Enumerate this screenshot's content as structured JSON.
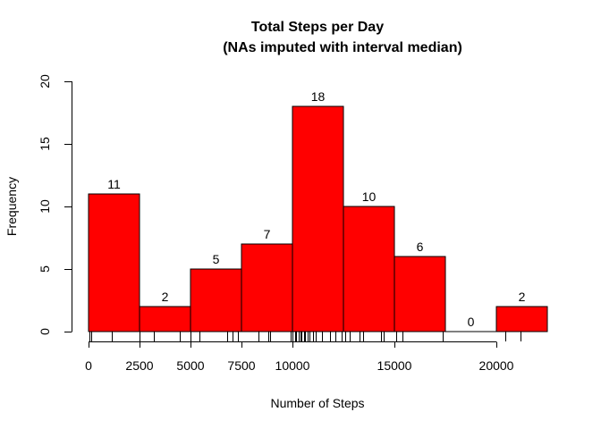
{
  "chart_data": {
    "type": "bar",
    "title": "Total Steps per Day",
    "subtitle": "(NAs imputed with interval median)",
    "xlabel": "Number of Steps",
    "ylabel": "Frequency",
    "bin_edges": [
      0,
      2500,
      5000,
      7500,
      10000,
      12500,
      15000,
      17500,
      20000,
      22500
    ],
    "values": [
      11,
      2,
      5,
      7,
      18,
      10,
      6,
      0,
      2
    ],
    "xlim": [
      0,
      22500
    ],
    "ylim": [
      0,
      20
    ],
    "x_ticks": [
      0,
      2500,
      5000,
      7500,
      10000,
      15000,
      20000
    ],
    "y_ticks": [
      0,
      5,
      10,
      15,
      20
    ],
    "bar_color": "#ff0000",
    "grid": false,
    "rug": [
      41,
      126,
      1124,
      2492,
      3190,
      4472,
      5018,
      5441,
      6778,
      7047,
      7336,
      8334,
      8355,
      8821,
      8918,
      9900,
      10000,
      10139,
      10183,
      10304,
      10395,
      10439,
      10571,
      10600,
      10765,
      10817,
      11015,
      11162,
      11458,
      11829,
      11834,
      12116,
      12426,
      12608,
      12811,
      13294,
      13452,
      13460,
      14339,
      14478,
      15084,
      15098,
      15414,
      17382,
      20427,
      21194
    ]
  }
}
